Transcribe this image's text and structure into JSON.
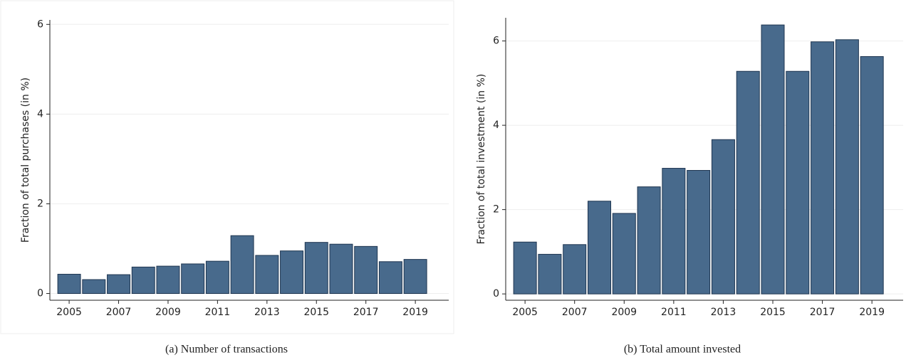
{
  "chart_data": [
    {
      "type": "bar",
      "caption": "(a) Number of transactions",
      "y_label": "Fraction of total purchases (in %)",
      "x": [
        2005,
        2006,
        2007,
        2008,
        2009,
        2010,
        2011,
        2012,
        2013,
        2014,
        2015,
        2016,
        2017,
        2018,
        2019
      ],
      "values": [
        0.43,
        0.31,
        0.42,
        0.59,
        0.61,
        0.66,
        0.72,
        1.29,
        0.85,
        0.95,
        1.14,
        1.1,
        1.05,
        0.71,
        0.76
      ],
      "color": "#486a8c",
      "xlim": [
        2004.22,
        2020.35
      ],
      "xticks": [
        2005,
        2007,
        2009,
        2011,
        2013,
        2015,
        2017,
        2019
      ],
      "ylim": [
        -0.15,
        6.1
      ],
      "yticks": [
        0,
        2,
        4,
        6
      ],
      "grid": true
    },
    {
      "type": "bar",
      "caption": "(b) Total amount invested",
      "y_label": "Fraction of total investment (in %)",
      "x": [
        2005,
        2006,
        2007,
        2008,
        2009,
        2010,
        2011,
        2012,
        2013,
        2014,
        2015,
        2016,
        2017,
        2018,
        2019
      ],
      "values": [
        1.23,
        0.94,
        1.17,
        2.2,
        1.91,
        2.54,
        2.98,
        2.93,
        3.66,
        5.28,
        6.38,
        5.28,
        5.98,
        6.03,
        5.63
      ],
      "color": "#486a8c",
      "xlim": [
        2004.22,
        2020.26
      ],
      "xticks": [
        2005,
        2007,
        2009,
        2011,
        2013,
        2015,
        2017,
        2019
      ],
      "ylim": [
        -0.15,
        6.55
      ],
      "yticks": [
        0,
        2,
        4,
        6
      ],
      "grid": true
    }
  ]
}
